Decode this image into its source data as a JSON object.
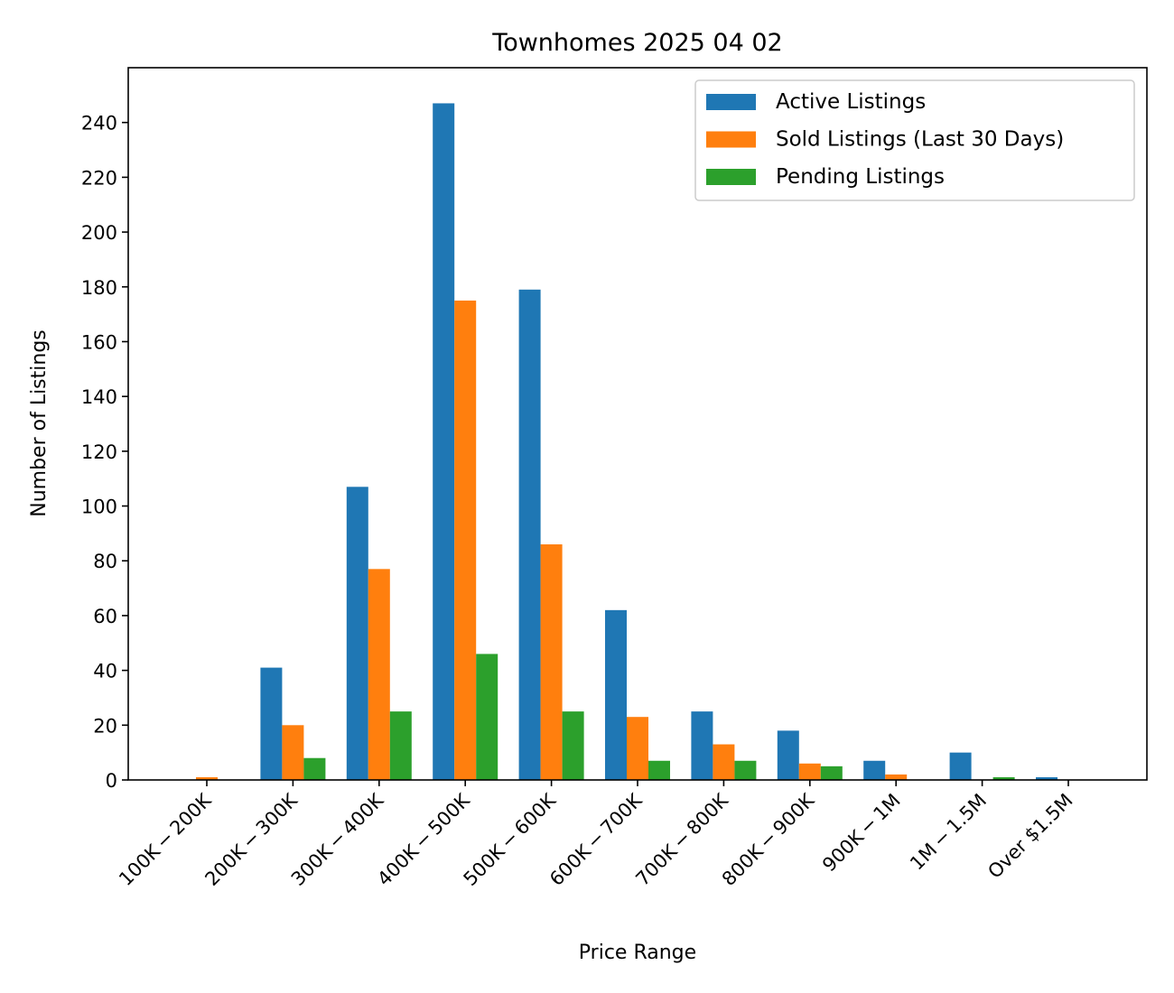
{
  "chart_data": {
    "type": "bar",
    "title": "Townhomes 2025 04 02",
    "xlabel": "Price Range",
    "ylabel": "Number of Listings",
    "ylim": [
      0,
      260
    ],
    "yticks": [
      0,
      20,
      40,
      60,
      80,
      100,
      120,
      140,
      160,
      180,
      200,
      220,
      240
    ],
    "grid": false,
    "legend_position": "top-right",
    "categories": [
      "100K − 200K",
      "200K − 300K",
      "300K − 400K",
      "400K − 500K",
      "500K − 600K",
      "600K − 700K",
      "700K − 800K",
      "800K − 900K",
      "900K − 1M",
      "1M − 1.5M",
      "Over $1.5M"
    ],
    "series": [
      {
        "name": "Active Listings",
        "color": "#1f77b4",
        "values": [
          0,
          41,
          107,
          247,
          179,
          62,
          25,
          18,
          7,
          10,
          1
        ]
      },
      {
        "name": "Sold Listings (Last 30 Days)",
        "color": "#ff7f0e",
        "values": [
          1,
          20,
          77,
          175,
          86,
          23,
          13,
          6,
          2,
          0,
          0
        ]
      },
      {
        "name": "Pending Listings",
        "color": "#2ca02c",
        "values": [
          0,
          8,
          25,
          46,
          25,
          7,
          7,
          5,
          0,
          1,
          0
        ]
      }
    ]
  }
}
